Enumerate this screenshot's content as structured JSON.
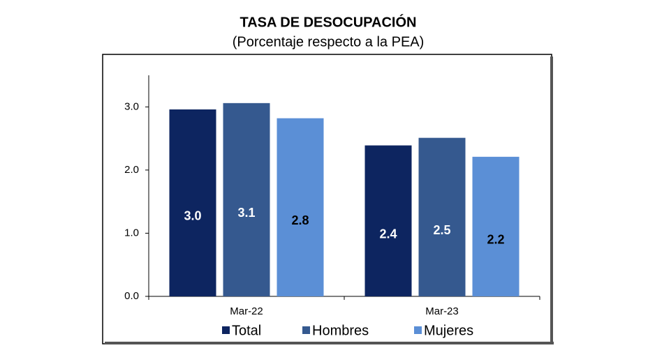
{
  "chart_data": {
    "type": "bar",
    "title": "TASA DE DESOCUPACIÓN",
    "subtitle": "(Porcentaje respecto a la PEA)",
    "categories": [
      "Mar-22",
      "Mar-23"
    ],
    "series": [
      {
        "name": "Total",
        "color": "#0d2560",
        "label_color": "#ffffff",
        "values": [
          2.96,
          2.39
        ],
        "value_labels": [
          "3.0",
          "2.4"
        ]
      },
      {
        "name": "Hombres",
        "color": "#35598f",
        "label_color": "#ffffff",
        "values": [
          3.06,
          2.51
        ],
        "value_labels": [
          "3.1",
          "2.5"
        ]
      },
      {
        "name": "Mujeres",
        "color": "#5b8fd6",
        "label_color": "#000000",
        "values": [
          2.82,
          2.21
        ],
        "value_labels": [
          "2.8",
          "2.2"
        ]
      }
    ],
    "ylim": [
      0,
      3.5
    ],
    "yticks": [
      {
        "value": 0,
        "label": "0.0"
      },
      {
        "value": 1,
        "label": "1.0"
      },
      {
        "value": 2,
        "label": "2.0"
      },
      {
        "value": 3,
        "label": "3.0"
      }
    ],
    "grid": false,
    "legend": "bottom"
  }
}
